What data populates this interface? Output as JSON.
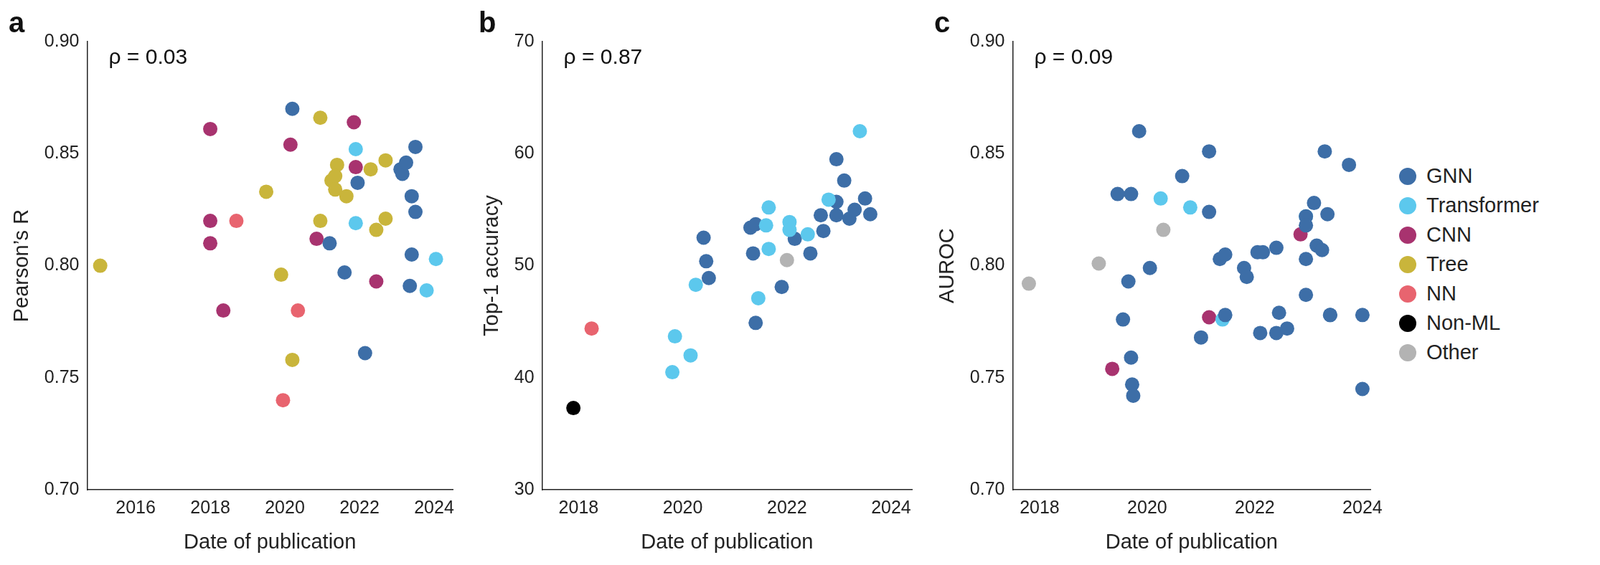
{
  "chart_data": [
    {
      "type": "scatter",
      "title": "a",
      "annotation": "ρ = 0.03",
      "x_label": "Date of publication",
      "y_label": "Pearson’s R",
      "xlim": [
        2014.7,
        2024.5
      ],
      "xticks": [
        2016,
        2018,
        2020,
        2022,
        2024
      ],
      "ylim": [
        0.7,
        0.9
      ],
      "yticks": [
        {
          "value": 0.7,
          "label": "0.70"
        },
        0.75,
        {
          "value": 0.8,
          "label": "0.80"
        },
        0.85,
        {
          "value": 0.9,
          "label": "0.90"
        }
      ],
      "grid": false,
      "marker": "circle",
      "series": [
        {
          "name": "GNN",
          "color": "#3d6ea7",
          "x": [
            2020.2,
            2021.2,
            2021.6,
            2021.95,
            2022.15,
            2023.1,
            2023.15,
            2023.25,
            2023.5,
            2023.4,
            2023.5,
            2023.4,
            2023.35
          ],
          "values": [
            0.87,
            0.81,
            0.797,
            0.837,
            0.761,
            0.843,
            0.841,
            0.846,
            0.853,
            0.831,
            0.824,
            0.805,
            0.791
          ]
        },
        {
          "name": "Transformer",
          "color": "#5cc8ed",
          "x": [
            2021.9,
            2021.9,
            2023.8,
            2024.05
          ],
          "values": [
            0.852,
            0.819,
            0.789,
            0.803
          ]
        },
        {
          "name": "CNN",
          "color": "#a8336f",
          "x": [
            2018.0,
            2018.0,
            2018.0,
            2018.35,
            2020.15,
            2020.85,
            2021.85,
            2021.9,
            2022.45
          ],
          "values": [
            0.861,
            0.82,
            0.81,
            0.78,
            0.854,
            0.812,
            0.864,
            0.844,
            0.793
          ]
        },
        {
          "name": "Tree",
          "color": "#c9b53b",
          "x": [
            2015.05,
            2019.5,
            2020.95,
            2020.95,
            2019.9,
            2020.2,
            2021.25,
            2021.4,
            2021.35,
            2021.35,
            2021.65,
            2022.3,
            2022.7,
            2022.45,
            2022.7
          ],
          "values": [
            0.8,
            0.833,
            0.866,
            0.82,
            0.796,
            0.758,
            0.838,
            0.845,
            0.84,
            0.834,
            0.831,
            0.843,
            0.847,
            0.816,
            0.821
          ]
        },
        {
          "name": "NN",
          "color": "#e8646f",
          "x": [
            2018.7,
            2019.95,
            2020.35
          ],
          "values": [
            0.82,
            0.74,
            0.78
          ]
        }
      ]
    },
    {
      "type": "scatter",
      "title": "b",
      "annotation": "ρ = 0.87",
      "x_label": "Date of publication",
      "y_label": "Top-1 accuracy",
      "xlim": [
        2017.3,
        2024.4
      ],
      "xticks": [
        2018,
        2020,
        2022,
        2024
      ],
      "ylim": [
        30,
        70
      ],
      "yticks": [
        30,
        40,
        50,
        60,
        70
      ],
      "grid": false,
      "marker": "circle",
      "series": [
        {
          "name": "Transformer",
          "color": "#5cc8ed",
          "x": [
            2019.8,
            2019.85,
            2020.15,
            2020.25,
            2021.45,
            2021.6,
            2021.65,
            2021.65,
            2022.05,
            2022.05,
            2022.4,
            2022.8,
            2023.4
          ],
          "values": [
            40.5,
            43.7,
            42.0,
            48.3,
            47.1,
            53.6,
            55.2,
            51.5,
            53.9,
            53.2,
            52.8,
            55.9,
            62.0
          ]
        },
        {
          "name": "GNN",
          "color": "#3d6ea7",
          "x": [
            2020.4,
            2020.45,
            2020.5,
            2021.3,
            2021.4,
            2021.35,
            2021.4,
            2021.9,
            2022.15,
            2022.45,
            2022.65,
            2022.7,
            2022.95,
            2022.95,
            2022.95,
            2023.1,
            2023.2,
            2023.3,
            2023.5,
            2023.6
          ],
          "values": [
            52.5,
            50.4,
            48.9,
            53.4,
            53.7,
            51.1,
            44.9,
            48.1,
            52.4,
            51.1,
            54.5,
            53.1,
            59.5,
            55.7,
            54.5,
            57.6,
            54.2,
            55.0,
            56.0,
            54.6
          ]
        },
        {
          "name": "NN",
          "color": "#e8646f",
          "x": [
            2018.25
          ],
          "values": [
            44.4
          ]
        },
        {
          "name": "Non-ML",
          "color": "#000000",
          "x": [
            2017.9
          ],
          "values": [
            37.3
          ]
        },
        {
          "name": "Other",
          "color": "#b3b3b3",
          "x": [
            2022.0
          ],
          "values": [
            50.5
          ]
        }
      ]
    },
    {
      "type": "scatter",
      "title": "c",
      "annotation": "ρ = 0.09",
      "x_label": "Date of publication",
      "y_label": "AUROC",
      "xlim": [
        2017.5,
        2024.15
      ],
      "xticks": [
        2018,
        2020,
        2022,
        2024
      ],
      "ylim": [
        0.7,
        0.9
      ],
      "yticks": [
        {
          "value": 0.7,
          "label": "0.70"
        },
        0.75,
        {
          "value": 0.8,
          "label": "0.80"
        },
        0.85,
        {
          "value": 0.9,
          "label": "0.90"
        }
      ],
      "grid": false,
      "marker": "circle",
      "legend": "right",
      "series": [
        {
          "name": "GNN",
          "color": "#3d6ea7",
          "x": [
            2019.45,
            2019.7,
            2019.85,
            2019.55,
            2019.65,
            2019.7,
            2019.72,
            2019.74,
            2020.05,
            2020.65,
            2021.15,
            2021.15,
            2021.0,
            2021.35,
            2021.45,
            2021.45,
            2021.8,
            2021.85,
            2022.05,
            2022.15,
            2022.1,
            2022.4,
            2022.45,
            2022.4,
            2022.6,
            2022.95,
            2022.95,
            2022.95,
            2022.95,
            2023.1,
            2023.15,
            2023.25,
            2023.3,
            2023.35,
            2023.4,
            2023.4,
            2023.75,
            2024.0,
            2024.0
          ],
          "values": [
            0.832,
            0.832,
            0.86,
            0.776,
            0.793,
            0.759,
            0.747,
            0.742,
            0.799,
            0.84,
            0.851,
            0.824,
            0.768,
            0.803,
            0.805,
            0.778,
            0.799,
            0.795,
            0.806,
            0.806,
            0.77,
            0.808,
            0.779,
            0.77,
            0.772,
            0.822,
            0.818,
            0.803,
            0.787,
            0.828,
            0.809,
            0.807,
            0.851,
            0.823,
            0.778,
            0.778,
            0.845,
            0.778,
            0.745
          ]
        },
        {
          "name": "Transformer",
          "color": "#5cc8ed",
          "x": [
            2020.25,
            2020.8,
            2021.4,
            2022.95
          ],
          "values": [
            0.83,
            0.826,
            0.776,
            0.822
          ]
        },
        {
          "name": "CNN",
          "color": "#a8336f",
          "x": [
            2019.35,
            2021.15,
            2022.85
          ],
          "values": [
            0.754,
            0.777,
            0.814
          ]
        },
        {
          "name": "Other",
          "color": "#b3b3b3",
          "x": [
            2017.8,
            2019.1,
            2020.3
          ],
          "values": [
            0.792,
            0.801,
            0.816
          ]
        }
      ]
    }
  ]
}
